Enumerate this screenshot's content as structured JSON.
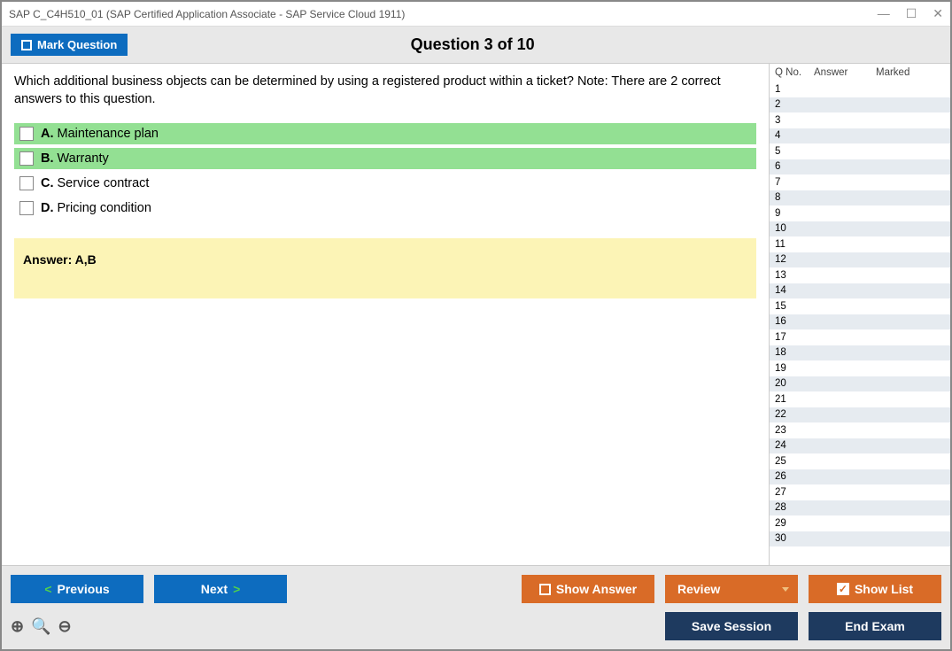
{
  "window": {
    "title": "SAP C_C4H510_01 (SAP Certified Application Associate - SAP Service Cloud 1911)"
  },
  "header": {
    "mark_label": "Mark Question",
    "title": "Question 3 of 10"
  },
  "question": {
    "text": "Which additional business objects can be determined by using a registered product within a ticket? Note: There are 2 correct answers to this question.",
    "options": [
      {
        "letter": "A.",
        "text": "Maintenance plan",
        "correct": true
      },
      {
        "letter": "B.",
        "text": "Warranty",
        "correct": true
      },
      {
        "letter": "C.",
        "text": "Service contract",
        "correct": false
      },
      {
        "letter": "D.",
        "text": "Pricing condition",
        "correct": false
      }
    ],
    "answer_label": "Answer: A,B"
  },
  "sidebar": {
    "columns": {
      "qno": "Q No.",
      "answer": "Answer",
      "marked": "Marked"
    },
    "row_count": 30
  },
  "footer": {
    "previous": "Previous",
    "next": "Next",
    "show_answer": "Show Answer",
    "review": "Review",
    "show_list": "Show List",
    "save_session": "Save Session",
    "end_exam": "End Exam"
  },
  "colors": {
    "blue": "#0d6cbf",
    "orange": "#d96b27",
    "navy": "#1e3a5f",
    "correct_bg": "#93e093",
    "answer_bg": "#fcf4b6",
    "stripe": "#e6ebf0"
  }
}
